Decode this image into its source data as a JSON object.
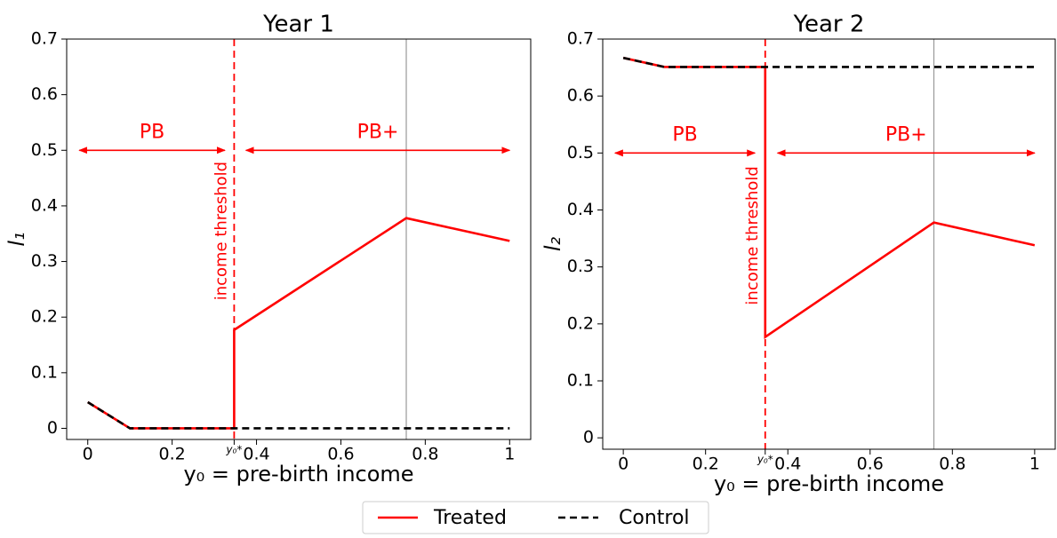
{
  "chart_data": [
    {
      "type": "line",
      "title": "Year 1",
      "xlabel": "y₀ = pre-birth income",
      "ylabel": "l₁",
      "xlim": [
        -0.05,
        1.05
      ],
      "ylim": [
        -0.02,
        0.7
      ],
      "xticks": [
        {
          "value": 0,
          "label": "0"
        },
        0.2,
        {
          "value": 0.347,
          "label": "y₀*"
        },
        0.4,
        0.6,
        0.8,
        1
      ],
      "yticks": [
        0,
        0.1,
        0.2,
        0.3,
        0.4,
        0.5,
        0.6,
        0.7
      ],
      "series": [
        {
          "name": "Treated",
          "color": "#ff0000",
          "style": "solid",
          "x": [
            0,
            0.1,
            0.347,
            0.347,
            0.755,
            1
          ],
          "values": [
            0.047,
            0,
            0,
            0.177,
            0.378,
            0.337
          ]
        },
        {
          "name": "Control",
          "color": "#000000",
          "style": "dashed",
          "x": [
            0,
            0.1,
            1
          ],
          "values": [
            0.047,
            0,
            0
          ]
        }
      ],
      "vlines": [
        {
          "x": 0.347,
          "color": "#ff0000",
          "style": "dashed",
          "label": "income threshold"
        },
        {
          "x": 0.755,
          "color": "#999999",
          "style": "solid"
        }
      ],
      "annotations": [
        {
          "text": "PB",
          "x": [
            -0.02,
            0.325
          ],
          "y": 0.5
        },
        {
          "text": "PB+",
          "x": [
            0.375,
            1.0
          ],
          "y": 0.5
        }
      ]
    },
    {
      "type": "line",
      "title": "Year 2",
      "xlabel": "y₀ = pre-birth income",
      "ylabel": "l₂",
      "xlim": [
        -0.05,
        1.05
      ],
      "ylim": [
        -0.02,
        0.7
      ],
      "xticks": [
        0,
        0.2,
        {
          "value": 0.345,
          "label": "y₀*"
        },
        0.4,
        0.6,
        0.8,
        1
      ],
      "yticks": [
        0,
        0.1,
        0.2,
        0.3,
        0.4,
        0.5,
        0.6,
        0.7
      ],
      "series": [
        {
          "name": "Treated",
          "color": "#ff0000",
          "style": "solid",
          "x": [
            0,
            0.1,
            0.345,
            0.345,
            0.755,
            1
          ],
          "values": [
            0.667,
            0.651,
            0.651,
            0.177,
            0.378,
            0.338
          ]
        },
        {
          "name": "Control",
          "color": "#000000",
          "style": "dashed",
          "x": [
            0,
            0.1,
            1
          ],
          "values": [
            0.667,
            0.651,
            0.651
          ]
        }
      ],
      "vlines": [
        {
          "x": 0.345,
          "color": "#ff0000",
          "style": "dashed",
          "label": "income threshold"
        },
        {
          "x": 0.755,
          "color": "#999999",
          "style": "solid"
        }
      ],
      "annotations": [
        {
          "text": "PB",
          "x": [
            -0.02,
            0.32
          ],
          "y": 0.5
        },
        {
          "text": "PB+",
          "x": [
            0.375,
            1.0
          ],
          "y": 0.5
        }
      ]
    }
  ]
}
